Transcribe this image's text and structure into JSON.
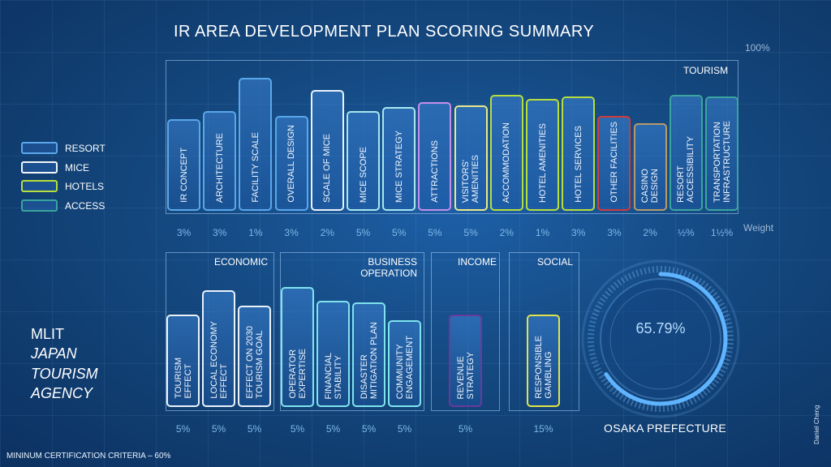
{
  "title": "IR AREA DEVELOPMENT PLAN SCORING SUMMARY",
  "top_percent": "100%",
  "weight_label": "Weight",
  "legend": [
    {
      "label": "RESORT",
      "color": "#5aa7ea"
    },
    {
      "label": "MICE",
      "color": "#f2f6fb"
    },
    {
      "label": "HOTELS",
      "color": "#b6de3c"
    },
    {
      "label": "ACCESS",
      "color": "#3aa59e"
    }
  ],
  "agency": {
    "line1": "MLIT",
    "line2": "JAPAN",
    "line3": "TOURISM",
    "line4": "AGENCY"
  },
  "criteria": "MININUM CERTIFICATION CRITERIA – 60%",
  "author": "Daniel Cheng",
  "gauge": {
    "value": "65.79%",
    "fraction": 0.6579,
    "label": "OSAKA PREFECTURE"
  },
  "sections": {
    "tourism": "TOURISM",
    "economic": "ECONOMIC",
    "business1": "BUSINESS",
    "business2": "OPERATION",
    "income": "INCOME",
    "social": "SOCIAL"
  },
  "chart_data": [
    {
      "type": "bar",
      "title": "TOURISM",
      "ylim": [
        0,
        100
      ],
      "categories": [
        "IR CONCEPT",
        "ARCHITECTURE",
        "FACILITY SCALE",
        "OVERALL DESIGN",
        "SCALE OF MICE",
        "MICE SCOPE",
        "MICE STRATEGY",
        "ATTRACTIONS",
        "VISITORS'\nAMENITIES",
        "ACCOMMODATION",
        "HOTEL AMENITIES",
        "HOTEL SERVICES",
        "OTHER FACILITIES",
        "CASINO\nDESIGN",
        "RESORT\nACCESSIBILITY",
        "TRANSPORTATION\nINFRASTRUCTURE"
      ],
      "values": [
        61,
        66,
        88,
        63,
        80,
        66,
        69,
        72,
        70,
        77,
        74,
        76,
        63,
        58,
        77,
        76
      ],
      "weights": [
        "3%",
        "3%",
        "1%",
        "3%",
        "2%",
        "5%",
        "5%",
        "5%",
        "5%",
        "2%",
        "1%",
        "3%",
        "3%",
        "2%",
        "½%",
        "1½%"
      ],
      "colors": [
        "#5aa7ea",
        "#5aa7ea",
        "#5aa7ea",
        "#5aa7ea",
        "#e9f2fb",
        "#a8e7ee",
        "#a8e7ee",
        "#c58ee8",
        "#ece98a",
        "#b6de3c",
        "#b6de3c",
        "#b6de3c",
        "#d23a3a",
        "#b89a6a",
        "#3aa59e",
        "#3aa59e"
      ]
    },
    {
      "type": "bar",
      "ylim": [
        0,
        100
      ],
      "categories": [
        "TOURISM\nEFFECT",
        "LOCAL ECONOMY\nEFFECT",
        "EFFECT ON 2030\nTOURISM GOAL",
        "OPERATOR\nEXPERTISE",
        "FINANCIAL\nSTABILITY",
        "DISASTER\nMITIGATION PLAN",
        "COMMUNITY\nENGAGEMENT",
        "REVENUE\nSTRATEGY",
        "RESPONSIBLE\nGAMBLING"
      ],
      "values": [
        61,
        77,
        67,
        79,
        70,
        69,
        57,
        61,
        61
      ],
      "weights": [
        "5%",
        "5%",
        "5%",
        "5%",
        "5%",
        "5%",
        "5%",
        "5%",
        "15%"
      ],
      "colors": [
        "#e9f2fb",
        "#e9f2fb",
        "#e9f2fb",
        "#7fe3ee",
        "#7fe3ee",
        "#7fe3ee",
        "#7fe3ee",
        "#6a3a9a",
        "#e2e34a"
      ]
    }
  ]
}
